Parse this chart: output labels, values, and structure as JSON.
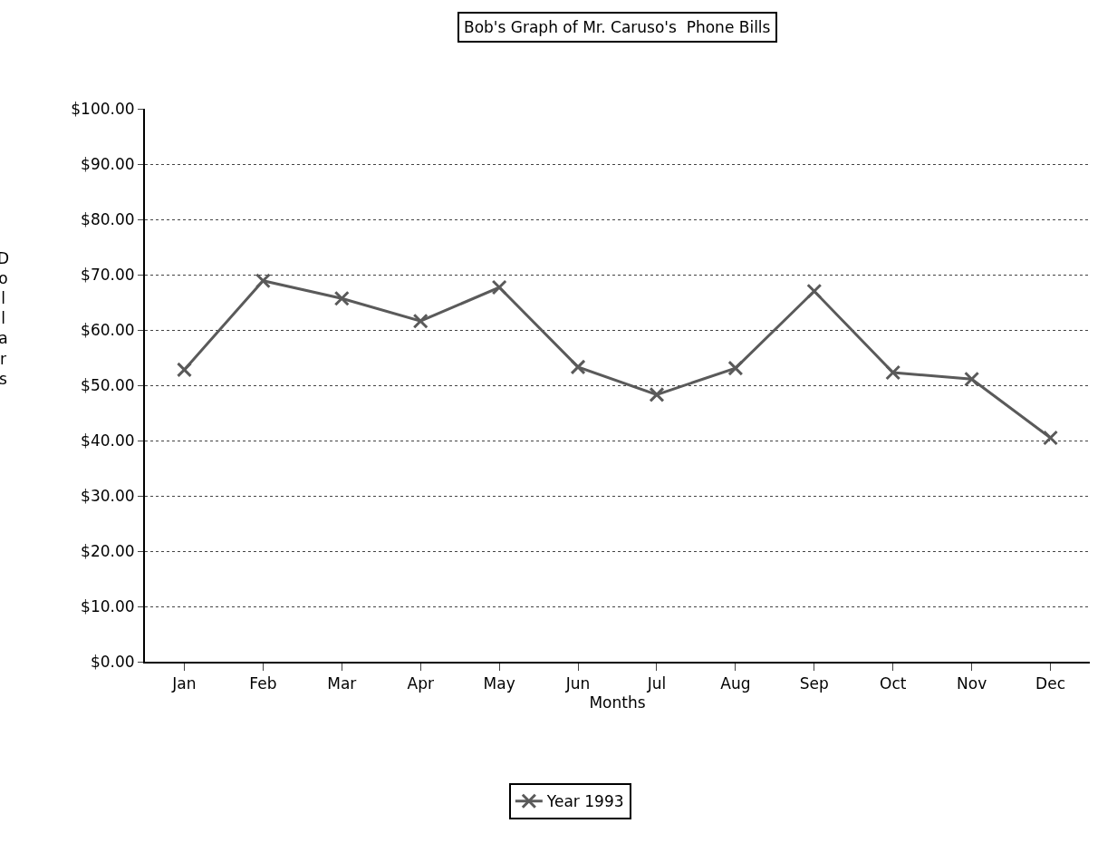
{
  "chart_data": {
    "type": "line",
    "title": "Bob's Graph of Mr. Caruso's  Phone Bills",
    "xlabel": "Months",
    "ylabel": "Dollars",
    "categories": [
      "Jan",
      "Feb",
      "Mar",
      "Apr",
      "May",
      "Jun",
      "Jul",
      "Aug",
      "Sep",
      "Oct",
      "Nov",
      "Dec"
    ],
    "series": [
      {
        "name": "Year 1993",
        "color": "#5a5a5a",
        "values": [
          52.8,
          68.9,
          65.7,
          61.6,
          67.7,
          53.3,
          48.3,
          53.1,
          67.0,
          52.3,
          51.1,
          40.5
        ]
      }
    ],
    "ylim": [
      0,
      100
    ],
    "yticks": [
      {
        "value": 0,
        "label": "$0.00"
      },
      {
        "value": 10,
        "label": "$10.00"
      },
      {
        "value": 20,
        "label": "$20.00"
      },
      {
        "value": 30,
        "label": "$30.00"
      },
      {
        "value": 40,
        "label": "$40.00"
      },
      {
        "value": 50,
        "label": "$50.00"
      },
      {
        "value": 60,
        "label": "$60.00"
      },
      {
        "value": 70,
        "label": "$70.00"
      },
      {
        "value": 80,
        "label": "$80.00"
      },
      {
        "value": 90,
        "label": "$90.00"
      },
      {
        "value": 100,
        "label": "$100.00"
      }
    ],
    "grid": "y",
    "legend": "bottom",
    "marker": "cross",
    "line_style": "solid"
  }
}
